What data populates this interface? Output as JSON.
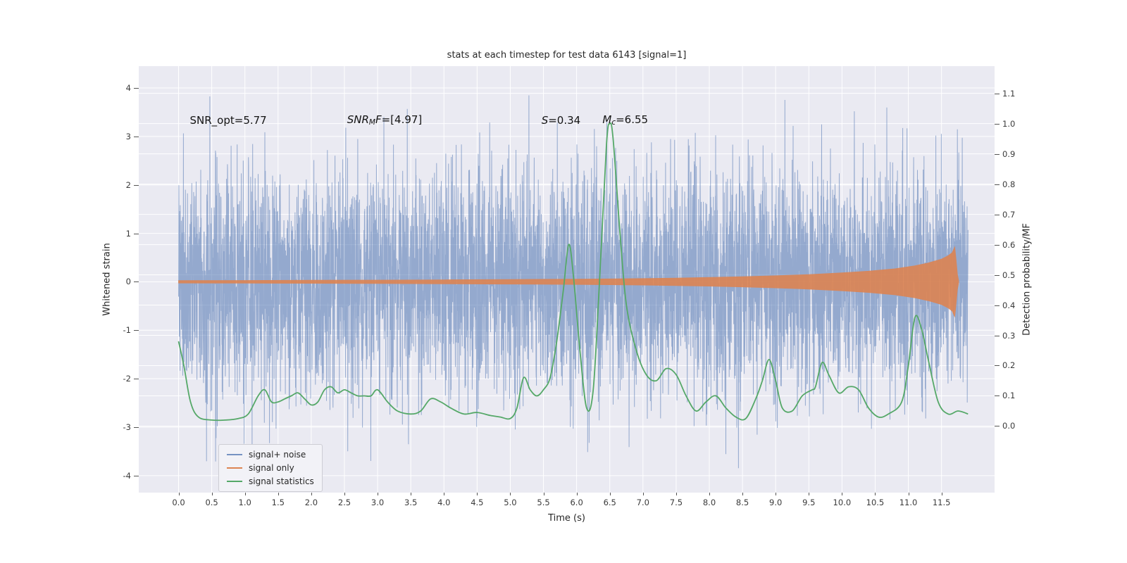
{
  "chart_data": {
    "type": "line",
    "title": "stats at each timestep for test data 6143 [signal=1]",
    "xlabel": "Time (s)",
    "ylabel_left": "Whitened strain",
    "ylabel_right": "Detection probability/MF",
    "xlim": [
      -0.6,
      12.3
    ],
    "ylim_left": [
      -4.35,
      4.45
    ],
    "ylim_right": [
      -0.22,
      1.19
    ],
    "x_ticks": [
      0,
      0.5,
      1,
      1.5,
      2,
      2.5,
      3,
      3.5,
      4,
      4.5,
      5,
      5.5,
      6,
      6.5,
      7,
      7.5,
      8,
      8.5,
      9,
      9.5,
      10,
      10.5,
      11,
      11.5
    ],
    "y_ticks_left": [
      -4,
      -3,
      -2,
      -1,
      0,
      1,
      2,
      3,
      4
    ],
    "y_ticks_right": [
      0,
      0.1,
      0.2,
      0.3,
      0.4,
      0.5,
      0.6,
      0.7,
      0.8,
      0.9,
      1,
      1.1
    ],
    "grid": true,
    "background": "#eaeaf2",
    "grid_color": "#ffffff",
    "annotations": [
      {
        "x": 0.17,
        "y": 3.2,
        "segments": [
          {
            "text": "SNR_opt=5.77"
          }
        ]
      },
      {
        "x": 2.54,
        "y": 3.2,
        "segments": [
          {
            "text": "SNR",
            "italic": true
          },
          {
            "text": "M",
            "italic": true,
            "sub": true
          },
          {
            "text": "F",
            "italic": true
          },
          {
            "text": "=[4.97]"
          }
        ]
      },
      {
        "x": 5.47,
        "y": 3.2,
        "segments": [
          {
            "text": "S",
            "italic": true
          },
          {
            "text": "=0.34"
          }
        ]
      },
      {
        "x": 6.39,
        "y": 3.2,
        "segments": [
          {
            "text": "M",
            "italic": true
          },
          {
            "text": "c",
            "italic": true,
            "sub": true
          },
          {
            "text": "=6.55"
          }
        ]
      }
    ],
    "legend": {
      "position": "lower left"
    },
    "series": [
      {
        "name": "signal+ noise",
        "type": "noise",
        "axis": "left",
        "color": "#4C72B0",
        "opacity": 0.55,
        "x_range": [
          0,
          11.9
        ],
        "n_points": 5200,
        "sigma": 1.15,
        "seed": 6143
      },
      {
        "name": "signal only",
        "type": "envelope",
        "axis": "left",
        "color": "#DD8452",
        "opacity": 0.9,
        "points": [
          [
            0,
            0.025
          ],
          [
            1,
            0.028
          ],
          [
            2,
            0.032
          ],
          [
            3,
            0.036
          ],
          [
            4,
            0.042
          ],
          [
            5,
            0.048
          ],
          [
            6,
            0.055
          ],
          [
            6.5,
            0.06
          ],
          [
            7,
            0.068
          ],
          [
            7.5,
            0.078
          ],
          [
            8,
            0.09
          ],
          [
            8.5,
            0.105
          ],
          [
            9,
            0.125
          ],
          [
            9.5,
            0.15
          ],
          [
            10,
            0.185
          ],
          [
            10.4,
            0.22
          ],
          [
            10.8,
            0.27
          ],
          [
            11.1,
            0.33
          ],
          [
            11.3,
            0.39
          ],
          [
            11.5,
            0.47
          ],
          [
            11.6,
            0.54
          ],
          [
            11.66,
            0.6
          ],
          [
            11.7,
            0.72
          ],
          [
            11.72,
            0.45
          ],
          [
            11.74,
            0.15
          ],
          [
            11.76,
            0.02
          ]
        ]
      },
      {
        "name": "signal statistics",
        "type": "line",
        "axis": "right",
        "color": "#55A868",
        "opacity": 1,
        "points": [
          [
            0,
            0.28
          ],
          [
            0.08,
            0.2
          ],
          [
            0.18,
            0.08
          ],
          [
            0.3,
            0.03
          ],
          [
            0.5,
            0.02
          ],
          [
            0.7,
            0.02
          ],
          [
            0.9,
            0.025
          ],
          [
            1.05,
            0.04
          ],
          [
            1.2,
            0.1
          ],
          [
            1.3,
            0.12
          ],
          [
            1.4,
            0.08
          ],
          [
            1.5,
            0.08
          ],
          [
            1.6,
            0.09
          ],
          [
            1.7,
            0.1
          ],
          [
            1.8,
            0.11
          ],
          [
            1.9,
            0.09
          ],
          [
            2,
            0.07
          ],
          [
            2.1,
            0.08
          ],
          [
            2.2,
            0.12
          ],
          [
            2.3,
            0.13
          ],
          [
            2.4,
            0.11
          ],
          [
            2.5,
            0.12
          ],
          [
            2.6,
            0.11
          ],
          [
            2.7,
            0.1
          ],
          [
            2.8,
            0.1
          ],
          [
            2.9,
            0.1
          ],
          [
            3,
            0.12
          ],
          [
            3.15,
            0.08
          ],
          [
            3.3,
            0.05
          ],
          [
            3.5,
            0.04
          ],
          [
            3.65,
            0.05
          ],
          [
            3.8,
            0.09
          ],
          [
            3.95,
            0.08
          ],
          [
            4.1,
            0.06
          ],
          [
            4.3,
            0.04
          ],
          [
            4.5,
            0.045
          ],
          [
            4.7,
            0.035
          ],
          [
            4.85,
            0.03
          ],
          [
            5,
            0.025
          ],
          [
            5.1,
            0.06
          ],
          [
            5.2,
            0.16
          ],
          [
            5.3,
            0.12
          ],
          [
            5.4,
            0.1
          ],
          [
            5.5,
            0.12
          ],
          [
            5.6,
            0.16
          ],
          [
            5.7,
            0.28
          ],
          [
            5.8,
            0.45
          ],
          [
            5.88,
            0.6
          ],
          [
            5.95,
            0.5
          ],
          [
            6.05,
            0.25
          ],
          [
            6.15,
            0.06
          ],
          [
            6.25,
            0.12
          ],
          [
            6.35,
            0.5
          ],
          [
            6.45,
            0.93
          ],
          [
            6.5,
            1.0
          ],
          [
            6.55,
            0.95
          ],
          [
            6.65,
            0.65
          ],
          [
            6.75,
            0.4
          ],
          [
            6.9,
            0.25
          ],
          [
            7.05,
            0.17
          ],
          [
            7.2,
            0.15
          ],
          [
            7.35,
            0.19
          ],
          [
            7.5,
            0.17
          ],
          [
            7.65,
            0.1
          ],
          [
            7.8,
            0.05
          ],
          [
            7.95,
            0.08
          ],
          [
            8.1,
            0.1
          ],
          [
            8.25,
            0.06
          ],
          [
            8.4,
            0.03
          ],
          [
            8.55,
            0.025
          ],
          [
            8.7,
            0.09
          ],
          [
            8.8,
            0.15
          ],
          [
            8.9,
            0.22
          ],
          [
            9,
            0.15
          ],
          [
            9.1,
            0.06
          ],
          [
            9.25,
            0.05
          ],
          [
            9.4,
            0.1
          ],
          [
            9.55,
            0.12
          ],
          [
            9.6,
            0.13
          ],
          [
            9.7,
            0.21
          ],
          [
            9.8,
            0.17
          ],
          [
            9.95,
            0.11
          ],
          [
            10.1,
            0.13
          ],
          [
            10.25,
            0.12
          ],
          [
            10.4,
            0.06
          ],
          [
            10.55,
            0.03
          ],
          [
            10.7,
            0.04
          ],
          [
            10.9,
            0.08
          ],
          [
            11,
            0.2
          ],
          [
            11.1,
            0.36
          ],
          [
            11.2,
            0.32
          ],
          [
            11.3,
            0.22
          ],
          [
            11.45,
            0.08
          ],
          [
            11.6,
            0.04
          ],
          [
            11.75,
            0.05
          ],
          [
            11.9,
            0.04
          ]
        ]
      }
    ]
  }
}
